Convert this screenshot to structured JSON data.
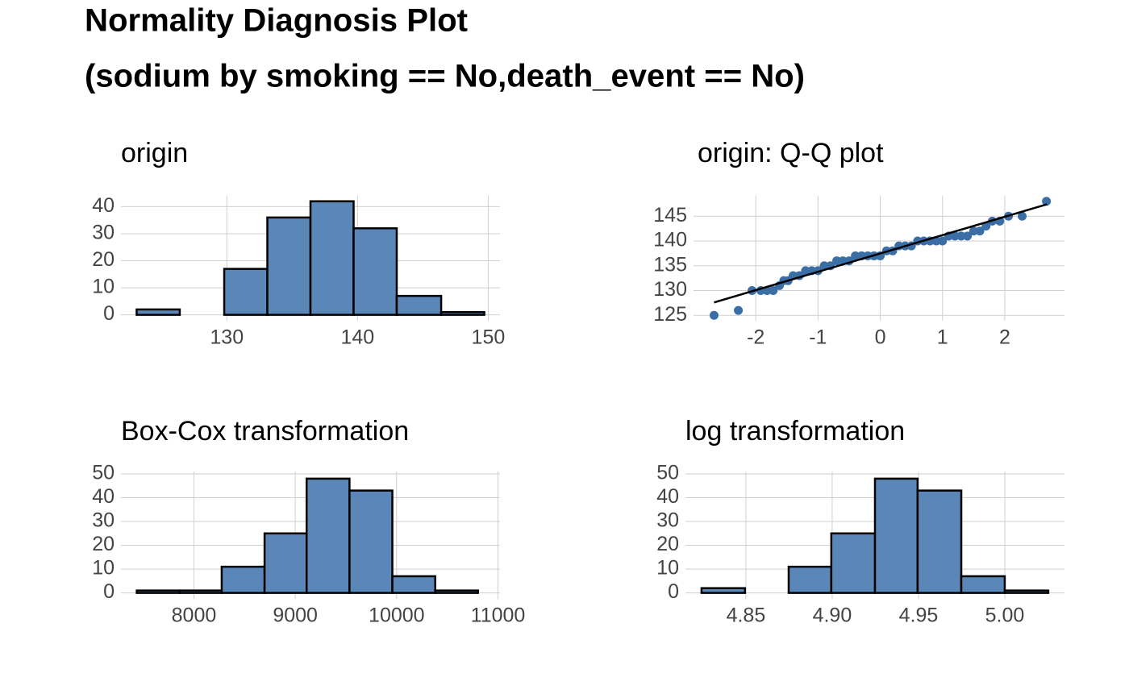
{
  "title": [
    "Normality Diagnosis Plot",
    "(sodium by smoking == No,death_event == No)"
  ],
  "chart_data": [
    {
      "type": "histogram",
      "title": "origin",
      "bins": [
        123.1,
        126.4,
        129.8,
        133.1,
        136.4,
        139.7,
        143.0,
        146.4,
        149.7
      ],
      "values": [
        2,
        0,
        17,
        36,
        42,
        32,
        7,
        1
      ],
      "color": "#5b87b8",
      "xlim": [
        121.9,
        150.9
      ],
      "ylim": [
        -2.2,
        44
      ],
      "xticks": [
        130,
        140,
        150
      ],
      "yticks": [
        0,
        10,
        20,
        30,
        40
      ],
      "grid": true
    },
    {
      "type": "scatter",
      "title": "origin: Q-Q plot",
      "x": [
        -2.67,
        -2.28,
        -2.06,
        -1.92,
        -1.82,
        -1.72,
        -1.62,
        -1.55,
        -1.48,
        -1.4,
        -1.3,
        -1.2,
        -1.1,
        -1.0,
        -0.9,
        -0.8,
        -0.7,
        -0.6,
        -0.5,
        -0.4,
        -0.3,
        -0.2,
        -0.1,
        0,
        0.1,
        0.2,
        0.3,
        0.4,
        0.5,
        0.6,
        0.7,
        0.8,
        0.9,
        1.0,
        1.1,
        1.2,
        1.3,
        1.4,
        1.5,
        1.6,
        1.7,
        1.8,
        1.92,
        2.06,
        2.28,
        2.67
      ],
      "values": [
        125,
        126,
        130,
        130,
        130,
        130,
        131,
        132,
        132,
        133,
        133,
        134,
        134,
        134,
        135,
        135,
        136,
        136,
        136,
        137,
        137,
        137,
        137,
        137,
        138,
        138,
        139,
        139,
        139,
        140,
        140,
        140,
        140,
        140,
        141,
        141,
        141,
        141,
        142,
        142,
        143,
        144,
        144,
        145,
        145,
        148
      ],
      "color": "#3a6ea5",
      "line": {
        "x": [
          -2.67,
          2.68
        ],
        "values": [
          127.6,
          147.4
        ],
        "color": "#000000"
      },
      "xlim": [
        -3.0,
        2.96
      ],
      "ylim": [
        123.9,
        149.1
      ],
      "xticks": [
        -2,
        -1,
        0,
        1,
        2
      ],
      "yticks": [
        125,
        130,
        135,
        140,
        145
      ],
      "grid": true
    },
    {
      "type": "histogram",
      "title": "Box-Cox transformation",
      "bins": [
        7436,
        7859,
        8274,
        8697,
        9112,
        9535,
        9958,
        10381,
        10803
      ],
      "values": [
        1,
        1,
        11,
        25,
        48,
        43,
        7,
        1
      ],
      "color": "#5b87b8",
      "xlim": [
        7280,
        11020
      ],
      "ylim": [
        -2.5,
        51
      ],
      "xticks": [
        8000,
        9000,
        10000,
        11000
      ],
      "yticks": [
        0,
        10,
        20,
        30,
        40,
        50
      ],
      "grid": true
    },
    {
      "type": "histogram",
      "title": "log transformation",
      "bins": [
        4.8243,
        4.8495,
        4.8748,
        4.8995,
        4.9248,
        4.9495,
        4.9748,
        5.0,
        5.0252
      ],
      "values": [
        2,
        0,
        11,
        25,
        48,
        43,
        7,
        1
      ],
      "color": "#5b87b8",
      "xlim": [
        4.815,
        5.0346
      ],
      "ylim": [
        -2.5,
        51
      ],
      "xticks": [
        4.85,
        {
          "value": 4.9,
          "label": "4.90"
        },
        4.95,
        {
          "value": 5,
          "label": "5.00"
        }
      ],
      "yticks": [
        0,
        10,
        20,
        30,
        40,
        50
      ],
      "grid": true
    }
  ]
}
